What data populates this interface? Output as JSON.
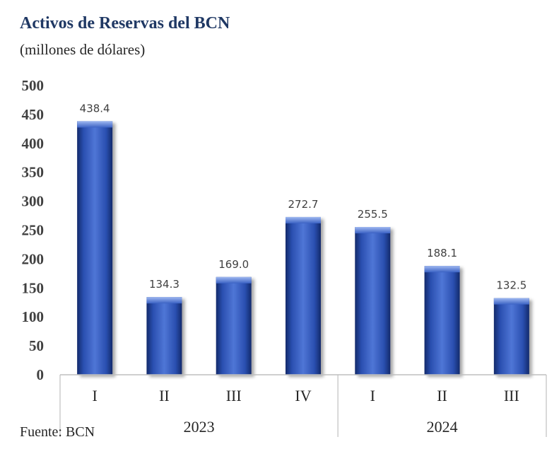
{
  "chart_data": {
    "type": "bar",
    "title": "Activos de Reservas del BCN",
    "subtitle": "(millones de dólares)",
    "categories": [
      "I",
      "II",
      "III",
      "IV",
      "I",
      "II",
      "III"
    ],
    "groups": [
      {
        "label": "2023",
        "count": 4
      },
      {
        "label": "2024",
        "count": 3
      }
    ],
    "values": [
      438.4,
      134.3,
      169.0,
      272.7,
      255.5,
      188.1,
      132.5
    ],
    "value_labels": [
      "438.4",
      "134.3",
      "169.0",
      "272.7",
      "255.5",
      "188.1",
      "132.5"
    ],
    "ylim": [
      0,
      500
    ],
    "yticks": [
      "0",
      "50",
      "100",
      "150",
      "200",
      "250",
      "300",
      "350",
      "400",
      "450",
      "500"
    ],
    "grid": false,
    "bar_color": "#2e55b8",
    "source": "Fuente: BCN"
  }
}
